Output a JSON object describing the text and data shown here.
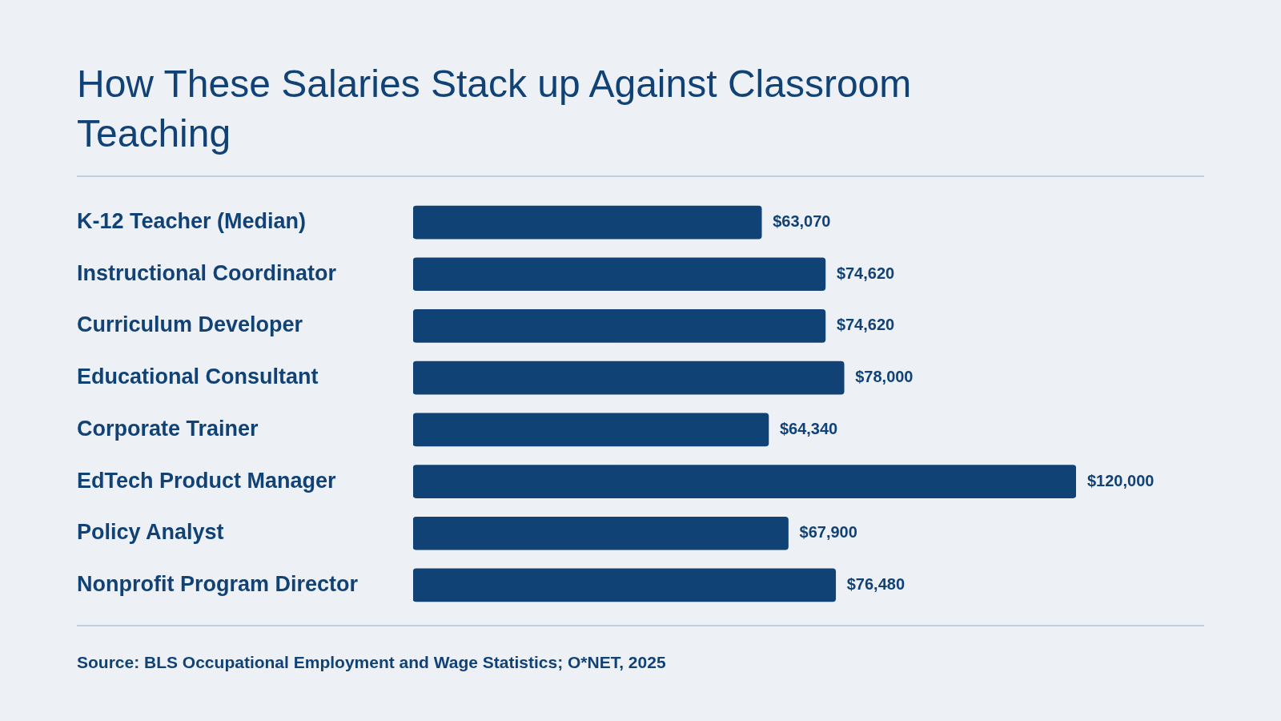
{
  "chart_data": {
    "type": "bar",
    "orientation": "horizontal",
    "title": "How These Salaries Stack up Against Classroom Teaching",
    "categories": [
      "K-12 Teacher (Median)",
      "Instructional Coordinator",
      "Curriculum Developer",
      "Educational Consultant",
      "Corporate Trainer",
      "EdTech Product Manager",
      "Policy Analyst",
      "Nonprofit Program Director"
    ],
    "values": [
      63070,
      74620,
      74620,
      78000,
      64340,
      120000,
      67900,
      76480
    ],
    "value_labels": [
      "$63,070",
      "$74,620",
      "$74,620",
      "$78,000",
      "$64,340",
      "$120,000",
      "$67,900",
      "$76,480"
    ],
    "color": "#114276",
    "annotations": [
      "Source: BLS Occupational Employment and Wage Statistics; O*NET, 2025"
    ]
  }
}
